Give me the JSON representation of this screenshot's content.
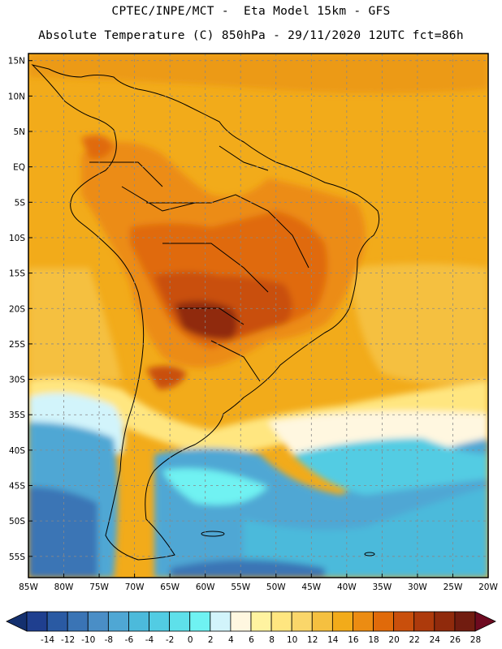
{
  "header": {
    "line1": "CPTEC/INPE/MCT -  Eta Model 15km - GFS",
    "line2": "Absolute Temperature (C) 850hPa - 29/11/2020 12UTC fct=86h"
  },
  "map": {
    "lon_range": [
      -85,
      -20
    ],
    "lat_range": [
      -58,
      16
    ],
    "lat_ticks": [
      "15N",
      "10N",
      "5N",
      "EQ",
      "5S",
      "10S",
      "15S",
      "20S",
      "25S",
      "30S",
      "35S",
      "40S",
      "45S",
      "50S",
      "55S"
    ],
    "lat_values": [
      15,
      10,
      5,
      0,
      -5,
      -10,
      -15,
      -20,
      -25,
      -30,
      -35,
      -40,
      -45,
      -50,
      -55
    ],
    "lon_ticks": [
      "85W",
      "80W",
      "75W",
      "70W",
      "65W",
      "60W",
      "55W",
      "50W",
      "45W",
      "40W",
      "35W",
      "30W",
      "25W",
      "20W"
    ],
    "lon_values": [
      -85,
      -80,
      -75,
      -70,
      -65,
      -60,
      -55,
      -50,
      -45,
      -40,
      -35,
      -30,
      -25,
      -20
    ],
    "grid": true
  },
  "colorbar": {
    "labels": [
      "-14",
      "-12",
      "-10",
      "-8",
      "-6",
      "-4",
      "-2",
      "0",
      "2",
      "4",
      "6",
      "8",
      "10",
      "12",
      "14",
      "16",
      "18",
      "20",
      "22",
      "24",
      "26",
      "28"
    ],
    "colors": [
      "#1f3f8f",
      "#2a5aa3",
      "#3a74b5",
      "#4a8ec6",
      "#4fa7d4",
      "#4cbadb",
      "#52cce3",
      "#5ee0ea",
      "#6ff2f2",
      "#d2f4fb",
      "#fff7e0",
      "#fff3a0",
      "#ffe680",
      "#fad66a",
      "#f5c040",
      "#f2ab1a",
      "#ec8c12",
      "#e06a0a",
      "#c94f0c",
      "#ad3a0c",
      "#902a0c",
      "#711c10"
    ],
    "low_end_color": "#14306f",
    "high_end_color": "#6e0a20"
  }
}
